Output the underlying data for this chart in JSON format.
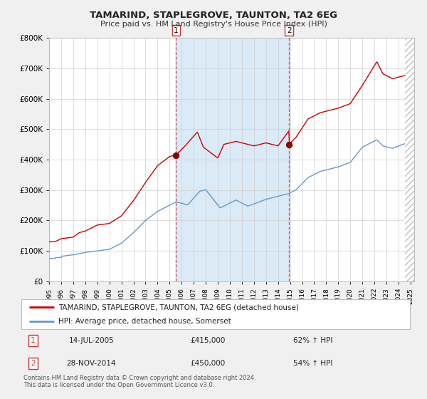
{
  "title": "TAMARIND, STAPLEGROVE, TAUNTON, TA2 6EG",
  "subtitle": "Price paid vs. HM Land Registry's House Price Index (HPI)",
  "legend_line1": "TAMARIND, STAPLEGROVE, TAUNTON, TA2 6EG (detached house)",
  "legend_line2": "HPI: Average price, detached house, Somerset",
  "sale1_date": "14-JUL-2005",
  "sale1_price": "£415,000",
  "sale1_hpi": "62% ↑ HPI",
  "sale2_date": "28-NOV-2014",
  "sale2_price": "£450,000",
  "sale2_hpi": "54% ↑ HPI",
  "footnote1": "Contains HM Land Registry data © Crown copyright and database right 2024.",
  "footnote2": "This data is licensed under the Open Government Licence v3.0.",
  "background_color": "#f0f0f0",
  "plot_bg_color": "#ffffff",
  "highlight_bg": "#daeaf7",
  "red_line_color": "#cc0000",
  "blue_line_color": "#6699cc",
  "vline_color": "#cc3333",
  "vline1_x": 2005.54,
  "vline2_x": 2014.91,
  "dot1_x": 2005.54,
  "dot1_y": 415000,
  "dot2_x": 2014.91,
  "dot2_y": 450000,
  "ylim": [
    0,
    800000
  ],
  "xlim": [
    1995,
    2025.3
  ],
  "yticks": [
    0,
    100000,
    200000,
    300000,
    400000,
    500000,
    600000,
    700000,
    800000
  ],
  "xticks": [
    1995,
    1996,
    1997,
    1998,
    1999,
    2000,
    2001,
    2002,
    2003,
    2004,
    2005,
    2006,
    2007,
    2008,
    2009,
    2010,
    2011,
    2012,
    2013,
    2014,
    2015,
    2016,
    2017,
    2018,
    2019,
    2020,
    2021,
    2022,
    2023,
    2024,
    2025
  ],
  "hatch_start": 2024.55,
  "hatch_end": 2025.5
}
